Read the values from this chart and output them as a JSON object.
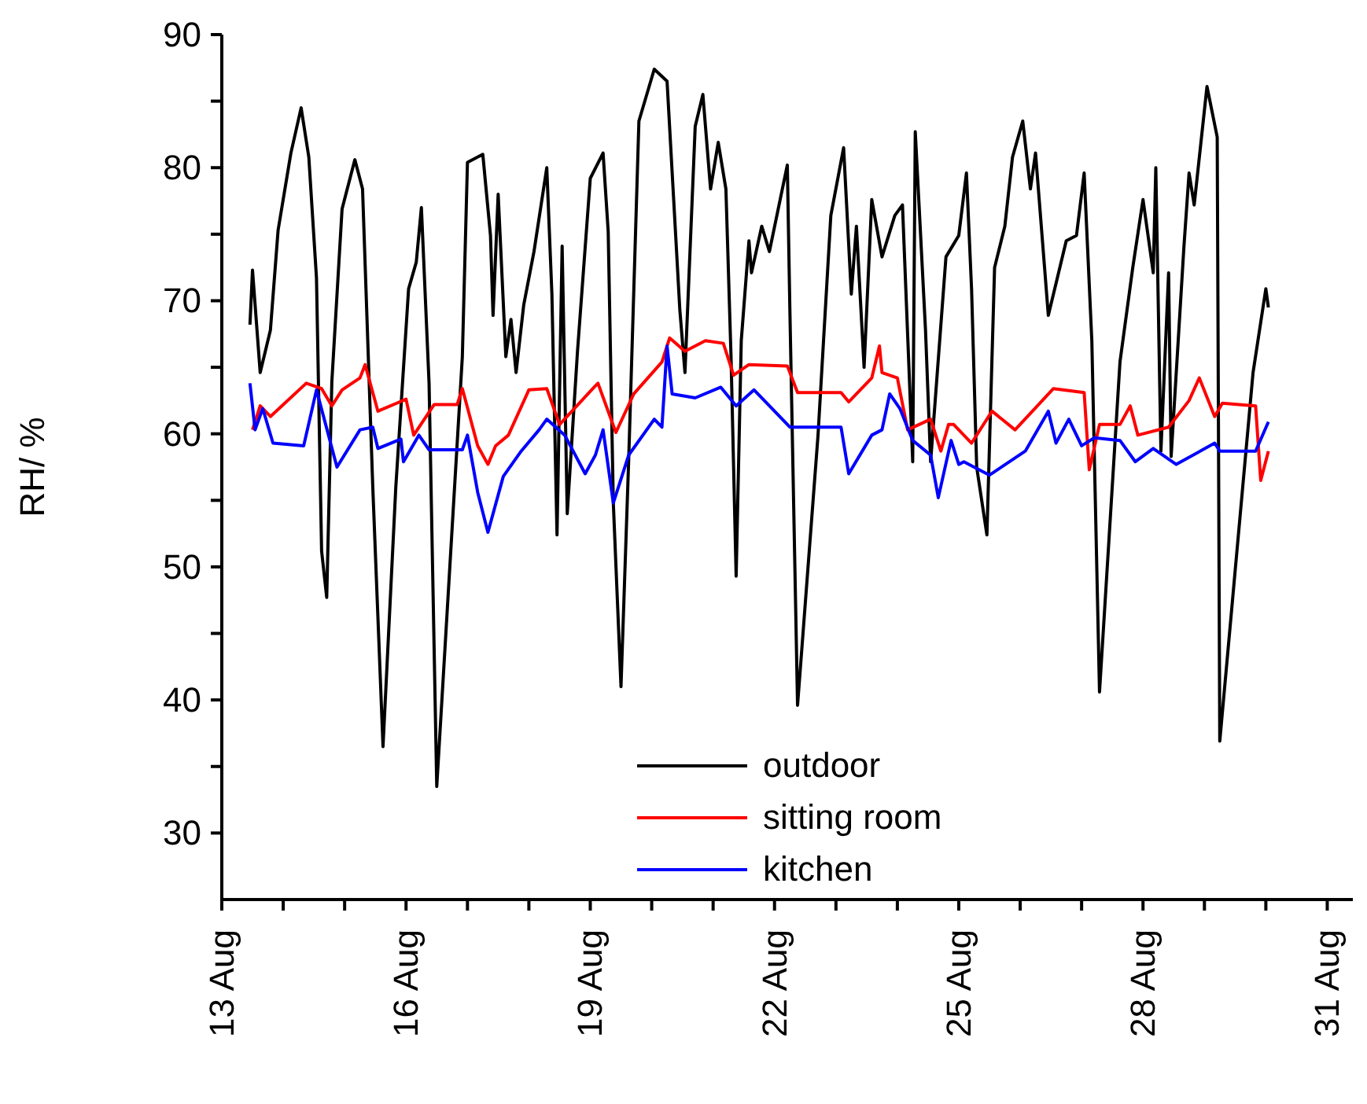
{
  "chart_data": {
    "type": "line",
    "ylabel": "RH/ %",
    "xlim": [
      "--08-13T00:00",
      "--08-31T10:00"
    ],
    "ylim": [
      25,
      90
    ],
    "xticks": [
      {
        "value": "--08-13",
        "label": "13 Aug"
      },
      {
        "value": "--08-14",
        "label": null
      },
      {
        "value": "--08-15",
        "label": null
      },
      {
        "value": "--08-16",
        "label": "16 Aug"
      },
      {
        "value": "--08-17",
        "label": null
      },
      {
        "value": "--08-18",
        "label": null
      },
      {
        "value": "--08-19",
        "label": "19 Aug"
      },
      {
        "value": "--08-20",
        "label": null
      },
      {
        "value": "--08-21",
        "label": null
      },
      {
        "value": "--08-22",
        "label": "22 Aug"
      },
      {
        "value": "--08-23",
        "label": null
      },
      {
        "value": "--08-24",
        "label": null
      },
      {
        "value": "--08-25",
        "label": "25 Aug"
      },
      {
        "value": "--08-26",
        "label": null
      },
      {
        "value": "--08-27",
        "label": null
      },
      {
        "value": "--08-28",
        "label": "28 Aug"
      },
      {
        "value": "--08-29",
        "label": null
      },
      {
        "value": "--08-30",
        "label": null
      },
      {
        "value": "--08-31",
        "label": "31 Aug"
      }
    ],
    "yticks": [
      30,
      {
        "value": 35,
        "label": null
      },
      40,
      {
        "value": 45,
        "label": null
      },
      50,
      {
        "value": 55,
        "label": null
      },
      60,
      {
        "value": 65,
        "label": null
      },
      70,
      {
        "value": 75,
        "label": null
      },
      80,
      {
        "value": 85,
        "label": null
      },
      90
    ],
    "legend": "bottom",
    "series": [
      {
        "name": "outdoor",
        "color": "#000000",
        "x": [
          "--08-13T11:00",
          "--08-13T12:00",
          "--08-13T15:00",
          "--08-13T19:00",
          "--08-13T22:00",
          "--08-14T03:00",
          "--08-14T07:00",
          "--08-14T10:00",
          "--08-14T13:00",
          "--08-14T15:00",
          "--08-14T17:00",
          "--08-14T19:00",
          "--08-14T23:00",
          "--08-15T04:00",
          "--08-15T07:00",
          "--08-15T11:00",
          "--08-15T15:00",
          "--08-15T20:00",
          "--08-16T01:00",
          "--08-16T04:00",
          "--08-16T06:00",
          "--08-16T09:00",
          "--08-16T12:00",
          "--08-16T22:00",
          "--08-17T00:00",
          "--08-17T06:00",
          "--08-17T09:00",
          "--08-17T10:00",
          "--08-17T12:00",
          "--08-17T15:00",
          "--08-17T17:00",
          "--08-17T19:00",
          "--08-17T22:00",
          "--08-18T02:00",
          "--08-18T07:00",
          "--08-18T09:00",
          "--08-18T11:00",
          "--08-18T13:00",
          "--08-18T15:00",
          "--08-18T19:00",
          "--08-19T00:00",
          "--08-19T05:00",
          "--08-19T07:00",
          "--08-19T09:00",
          "--08-19T12:00",
          "--08-19T15:00",
          "--08-19T19:00",
          "--08-20T01:00",
          "--08-20T06:00",
          "--08-20T11:00",
          "--08-20T13:00",
          "--08-20T17:00",
          "--08-20T20:00",
          "--08-20T23:00",
          "--08-21T02:00",
          "--08-21T05:00",
          "--08-21T07:00",
          "--08-21T09:00",
          "--08-21T11:00",
          "--08-21T14:00",
          "--08-21T15:00",
          "--08-21T19:00",
          "--08-21T22:00",
          "--08-22T05:00",
          "--08-22T06:00",
          "--08-22T09:00",
          "--08-22T17:00",
          "--08-22T22:00",
          "--08-23T03:00",
          "--08-23T06:00",
          "--08-23T08:00",
          "--08-23T11:00",
          "--08-23T14:00",
          "--08-23T18:00",
          "--08-23T23:00",
          "--08-24T02:00",
          "--08-24T06:00",
          "--08-24T07:00",
          "--08-24T11:00",
          "--08-24T13:00",
          "--08-24T19:00",
          "--08-25T00:00",
          "--08-25T03:00",
          "--08-25T05:00",
          "--08-25T07:00",
          "--08-25T11:00",
          "--08-25T14:00",
          "--08-25T18:00",
          "--08-25T21:00",
          "--08-26T01:00",
          "--08-26T04:00",
          "--08-26T06:00",
          "--08-26T11:00",
          "--08-26T14:00",
          "--08-26T18:00",
          "--08-26T22:00",
          "--08-27T01:00",
          "--08-27T04:00",
          "--08-27T07:00",
          "--08-27T15:00",
          "--08-27T20:00",
          "--08-28T00:00",
          "--08-28T04:00",
          "--08-28T05:00",
          "--08-28T07:00",
          "--08-28T10:00",
          "--08-28T11:00",
          "--08-28T16:00",
          "--08-28T18:00",
          "--08-28T20:00",
          "--08-29T01:00",
          "--08-29T05:00",
          "--08-29T06:00",
          "--08-29T19:00",
          "--08-30T00:00",
          "--08-30T01:00"
        ],
        "values": [
          68.2,
          72.3,
          64.6,
          67.8,
          75.3,
          81.1,
          84.5,
          80.8,
          71.7,
          51.2,
          47.7,
          63.9,
          76.9,
          80.6,
          78.4,
          56,
          36.5,
          56,
          70.9,
          72.9,
          77,
          63.8,
          33.5,
          65.8,
          80.4,
          81,
          74.9,
          68.9,
          78,
          65.8,
          68.6,
          64.6,
          69.7,
          73.7,
          80,
          70.5,
          52.4,
          74.1,
          54,
          66.2,
          79.2,
          81.1,
          75.2,
          54.8,
          41,
          58,
          83.5,
          87.4,
          86.5,
          69.3,
          64.6,
          83.1,
          85.5,
          78.4,
          81.9,
          78.4,
          65.8,
          49.3,
          67,
          74.5,
          72.1,
          75.6,
          73.7,
          80.2,
          69.3,
          39.6,
          59.9,
          76.4,
          81.5,
          70.5,
          75.6,
          65,
          77.6,
          73.3,
          76.4,
          77.2,
          57.9,
          82.7,
          67.8,
          57.9,
          73.3,
          74.9,
          79.6,
          70.9,
          57.5,
          52.4,
          72.5,
          75.6,
          80.8,
          83.5,
          78.4,
          81.1,
          68.9,
          71.3,
          74.5,
          74.9,
          79.6,
          67,
          40.6,
          65.4,
          72.5,
          77.6,
          72.1,
          80,
          58.7,
          72.1,
          58.3,
          74.1,
          79.6,
          77.2,
          86.1,
          82.3,
          36.9,
          64.6,
          70.9,
          69.5
        ]
      },
      {
        "name": "sitting room",
        "color": "#ff0000",
        "x": [
          "--08-13T12:00",
          "--08-13T15:00",
          "--08-13T19:00",
          "--08-14T09:00",
          "--08-14T15:00",
          "--08-14T19:00",
          "--08-14T23:00",
          "--08-15T06:00",
          "--08-15T08:00",
          "--08-15T13:00",
          "--08-16T00:00",
          "--08-16T03:00",
          "--08-16T11:00",
          "--08-16T20:00",
          "--08-16T22:00",
          "--08-17T04:00",
          "--08-17T08:00",
          "--08-17T11:00",
          "--08-17T16:00",
          "--08-18T00:00",
          "--08-18T07:00",
          "--08-18T12:00",
          "--08-19T01:00",
          "--08-19T03:00",
          "--08-19T10:00",
          "--08-19T17:00",
          "--08-20T04:00",
          "--08-20T07:00",
          "--08-20T13:00",
          "--08-20T21:00",
          "--08-21T04:00",
          "--08-21T08:00",
          "--08-21T14:00",
          "--08-22T05:00",
          "--08-22T09:00",
          "--08-23T02:00",
          "--08-23T05:00",
          "--08-23T14:00",
          "--08-23T17:00",
          "--08-23T18:00",
          "--08-24T00:00",
          "--08-24T04:00",
          "--08-24T13:00",
          "--08-24T17:00",
          "--08-24T20:00",
          "--08-24T22:00",
          "--08-25T05:00",
          "--08-25T13:00",
          "--08-25T22:00",
          "--08-26T13:00",
          "--08-27T01:00",
          "--08-27T03:00",
          "--08-27T07:00",
          "--08-27T15:00",
          "--08-27T19:00",
          "--08-27T22:00",
          "--08-28T10:00",
          "--08-28T18:00",
          "--08-28T22:00",
          "--08-29T04:00",
          "--08-29T07:00",
          "--08-29T20:00",
          "--08-29T22:00",
          "--08-30T01:00"
        ],
        "values": [
          60.3,
          62.1,
          61.3,
          63.8,
          63.4,
          62.1,
          63.3,
          64.2,
          65.2,
          61.7,
          62.6,
          59.9,
          62.2,
          62.2,
          63.4,
          59.1,
          57.7,
          59.1,
          59.9,
          63.3,
          63.4,
          60.7,
          63.4,
          63.8,
          60.1,
          63,
          65.4,
          67.2,
          66.2,
          67,
          66.8,
          64.4,
          65.2,
          65.1,
          63.1,
          63.1,
          62.4,
          64.2,
          66.6,
          64.6,
          64.2,
          60.3,
          61.1,
          58.7,
          60.7,
          60.7,
          59.3,
          61.7,
          60.3,
          63.4,
          63.1,
          57.3,
          60.7,
          60.7,
          62.1,
          59.9,
          60.5,
          62.5,
          64.2,
          61.3,
          62.3,
          62.1,
          56.5,
          58.7
        ]
      },
      {
        "name": "kitchen",
        "color": "#0000ff",
        "x": [
          "--08-13T11:00",
          "--08-13T13:00",
          "--08-13T16:00",
          "--08-13T20:00",
          "--08-14T08:00",
          "--08-14T13:00",
          "--08-14T21:00",
          "--08-15T06:00",
          "--08-15T11:00",
          "--08-15T13:00",
          "--08-15T22:00",
          "--08-15T23:00",
          "--08-16T05:00",
          "--08-16T09:00",
          "--08-16T22:00",
          "--08-17T00:00",
          "--08-17T04:00",
          "--08-17T08:00",
          "--08-17T14:00",
          "--08-17T21:00",
          "--08-18T04:00",
          "--08-18T07:00",
          "--08-18T14:00",
          "--08-18T22:00",
          "--08-19T02:00",
          "--08-19T05:00",
          "--08-19T09:00",
          "--08-19T15:00",
          "--08-20T01:00",
          "--08-20T04:00",
          "--08-20T06:00",
          "--08-20T08:00",
          "--08-20T17:00",
          "--08-21T03:00",
          "--08-21T09:00",
          "--08-21T16:00",
          "--08-22T06:00",
          "--08-23T02:00",
          "--08-23T05:00",
          "--08-23T14:00",
          "--08-23T18:00",
          "--08-23T21:00",
          "--08-24T01:00",
          "--08-24T06:00",
          "--08-24T13:00",
          "--08-24T16:00",
          "--08-24T21:00",
          "--08-25T00:00",
          "--08-25T02:00",
          "--08-25T12:00",
          "--08-26T02:00",
          "--08-26T11:00",
          "--08-26T14:00",
          "--08-26T19:00",
          "--08-27T00:00",
          "--08-27T05:00",
          "--08-27T15:00",
          "--08-27T21:00",
          "--08-28T04:00",
          "--08-28T13:00",
          "--08-29T04:00",
          "--08-29T06:00",
          "--08-29T20:00",
          "--08-30T01:00"
        ],
        "values": [
          63.8,
          60.3,
          61.9,
          59.3,
          59.1,
          63.3,
          57.5,
          60.3,
          60.5,
          58.9,
          59.6,
          57.9,
          59.9,
          58.8,
          58.8,
          59.9,
          55.6,
          52.6,
          56.8,
          58.7,
          60.3,
          61.1,
          59.9,
          57,
          58.4,
          60.3,
          54.8,
          58.4,
          61.1,
          60.5,
          66.6,
          63,
          62.7,
          63.5,
          62.1,
          63.3,
          60.5,
          60.5,
          57,
          59.9,
          60.3,
          63,
          61.9,
          59.5,
          58.4,
          55.2,
          59.5,
          57.7,
          57.9,
          56.9,
          58.7,
          61.7,
          59.3,
          61.1,
          59.1,
          59.7,
          59.5,
          57.9,
          58.9,
          57.7,
          59.3,
          58.7,
          58.7,
          60.9
        ]
      }
    ]
  }
}
